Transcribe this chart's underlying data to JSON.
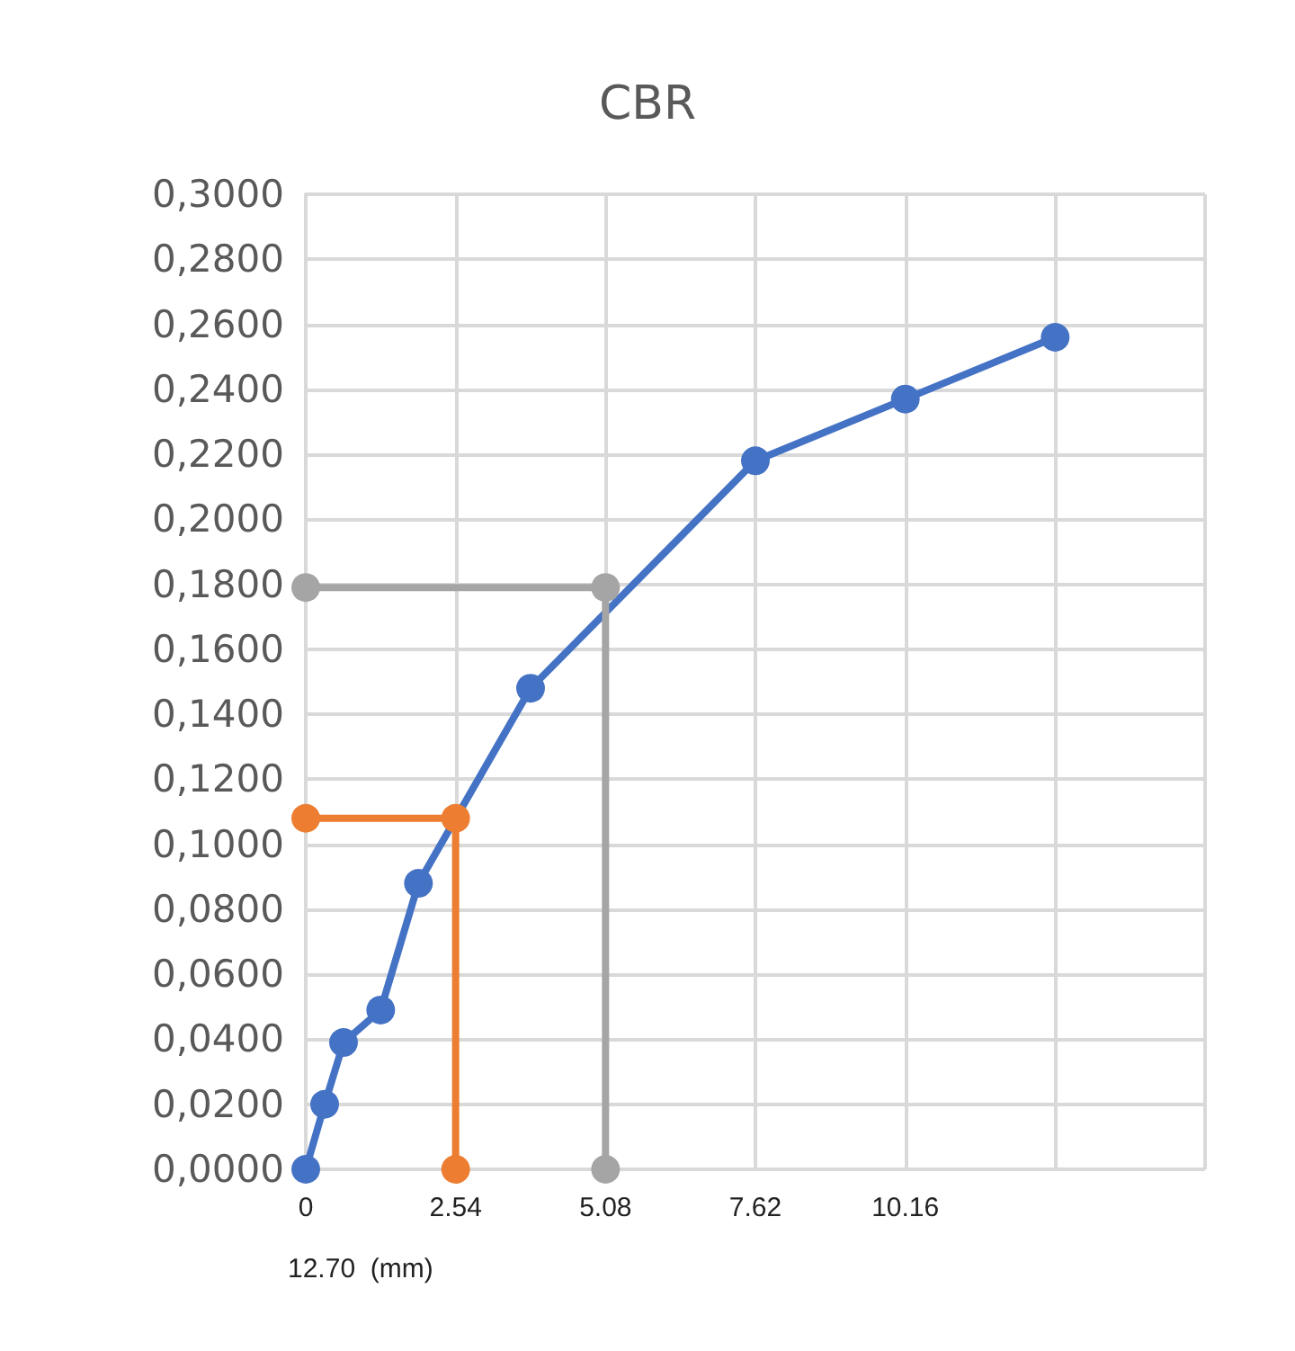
{
  "chart_data": {
    "type": "line",
    "title": "CBR",
    "xlabel": "12.70  (mm)",
    "xlim": [
      0,
      15.24
    ],
    "xticks": [
      0,
      2.54,
      5.08,
      7.62,
      10.16,
      {
        "value": 12.7,
        "label": null
      },
      {
        "value": 15.24,
        "label": null
      }
    ],
    "ylim": [
      0,
      0.3
    ],
    "yticks": [
      {
        "value": 0,
        "label": "0,0000"
      },
      {
        "value": 0.02,
        "label": "0,0200"
      },
      {
        "value": 0.04,
        "label": "0,0400"
      },
      {
        "value": 0.06,
        "label": "0,0600"
      },
      {
        "value": 0.08,
        "label": "0,0800"
      },
      {
        "value": 0.1,
        "label": "0,1000"
      },
      {
        "value": 0.12,
        "label": "0,1200"
      },
      {
        "value": 0.14,
        "label": "0,1400"
      },
      {
        "value": 0.16,
        "label": "0,1600"
      },
      {
        "value": 0.18,
        "label": "0,1800"
      },
      {
        "value": 0.2,
        "label": "0,2000"
      },
      {
        "value": 0.22,
        "label": "0,2200"
      },
      {
        "value": 0.24,
        "label": "0,2400"
      },
      {
        "value": 0.26,
        "label": "0,2600"
      },
      {
        "value": 0.28,
        "label": "0,2800"
      },
      {
        "value": 0.3,
        "label": "0,3000"
      }
    ],
    "series": [
      {
        "color": "#4472c4",
        "x": [
          0,
          0.32,
          0.64,
          1.27,
          1.91,
          2.54,
          3.81,
          5.08,
          7.62,
          10.16,
          12.7
        ],
        "values": [
          0,
          0.02,
          0.039,
          0.049,
          0.088,
          null,
          0.148,
          null,
          0.218,
          0.237,
          0.256
        ]
      },
      {
        "color": "#ed7d31",
        "x": [
          0,
          2.54,
          2.54
        ],
        "values": [
          0.108,
          0.108,
          0
        ]
      },
      {
        "color": "#a5a5a5",
        "x": [
          0,
          5.08,
          5.08
        ],
        "values": [
          0.179,
          0.179,
          0
        ]
      }
    ],
    "grid": true,
    "marker": "circle",
    "line_style": "solid"
  }
}
